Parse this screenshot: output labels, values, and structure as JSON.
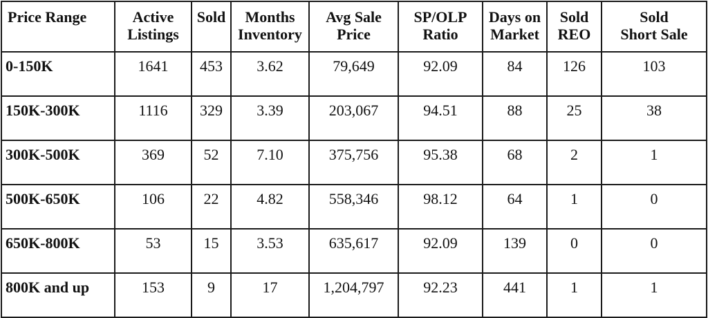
{
  "table": {
    "headers": [
      [
        "Price Range"
      ],
      [
        "Active",
        "Listings"
      ],
      [
        "Sold"
      ],
      [
        "Months",
        "Inventory"
      ],
      [
        "Avg Sale",
        "Price"
      ],
      [
        "SP/OLP",
        "Ratio"
      ],
      [
        "Days on",
        "Market"
      ],
      [
        "Sold",
        "REO"
      ],
      [
        "Sold",
        "Short Sale"
      ]
    ],
    "rows": [
      [
        "0-150K",
        "1641",
        "453",
        "3.62",
        "79,649",
        "92.09",
        "84",
        "126",
        "103"
      ],
      [
        "150K-300K",
        "1116",
        "329",
        "3.39",
        "203,067",
        "94.51",
        "88",
        "25",
        "38"
      ],
      [
        "300K-500K",
        "369",
        "52",
        "7.10",
        "375,756",
        "95.38",
        "68",
        "2",
        "1"
      ],
      [
        "500K-650K",
        "106",
        "22",
        "4.82",
        "558,346",
        "98.12",
        "64",
        "1",
        "0"
      ],
      [
        "650K-800K",
        "53",
        "15",
        "3.53",
        "635,617",
        "92.09",
        "139",
        "0",
        "0"
      ],
      [
        "800K and up",
        "153",
        "9",
        "17",
        "1,204,797",
        "92.23",
        "441",
        "1",
        "1"
      ]
    ]
  }
}
